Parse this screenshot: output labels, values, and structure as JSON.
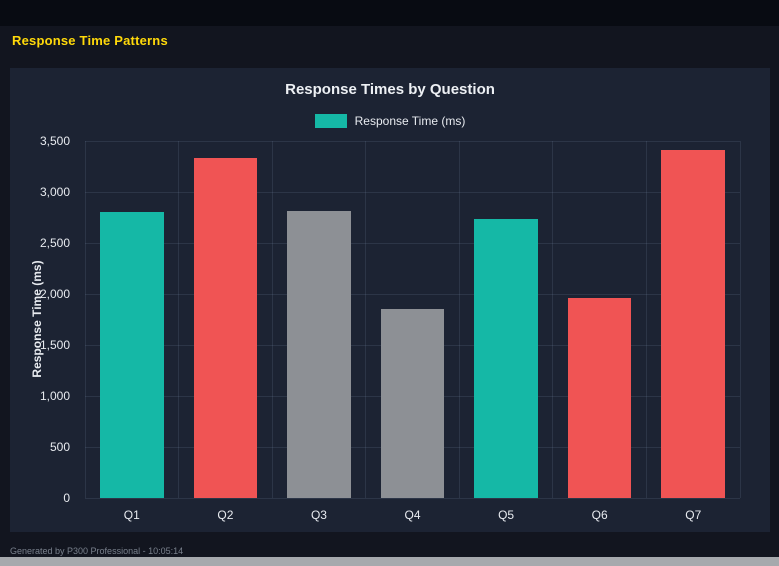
{
  "page": {
    "heading": "Response Time Patterns",
    "footer": "Generated by P300 Professional - 10:05:14"
  },
  "theme": {
    "heading_color": "#ffd90a",
    "panel_background": "#1c2333",
    "page_background": "#12151f",
    "teal": "#15b8a6",
    "red": "#f05454",
    "gray": "#8d9095"
  },
  "chart_data": {
    "type": "bar",
    "title": "Response Times by Question",
    "legend": [
      {
        "label": "Response Time (ms)",
        "color": "#15b8a6"
      }
    ],
    "legend_position": "top",
    "xlabel": "",
    "ylabel": "Response Time (ms)",
    "ylim": [
      0,
      3500
    ],
    "grid": true,
    "yticks": [
      0,
      500,
      1000,
      1500,
      2000,
      2500,
      3000,
      3500
    ],
    "ytick_labels": [
      "0",
      "500",
      "1,000",
      "1,500",
      "2,000",
      "2,500",
      "3,000",
      "3,500"
    ],
    "categories": [
      "Q1",
      "Q2",
      "Q3",
      "Q4",
      "Q5",
      "Q6",
      "Q7"
    ],
    "values": [
      2800,
      3330,
      2810,
      1850,
      2740,
      1960,
      3410
    ],
    "bar_colors": [
      "#15b8a6",
      "#f05454",
      "#8d9095",
      "#8d9095",
      "#15b8a6",
      "#f05454",
      "#f05454"
    ]
  }
}
